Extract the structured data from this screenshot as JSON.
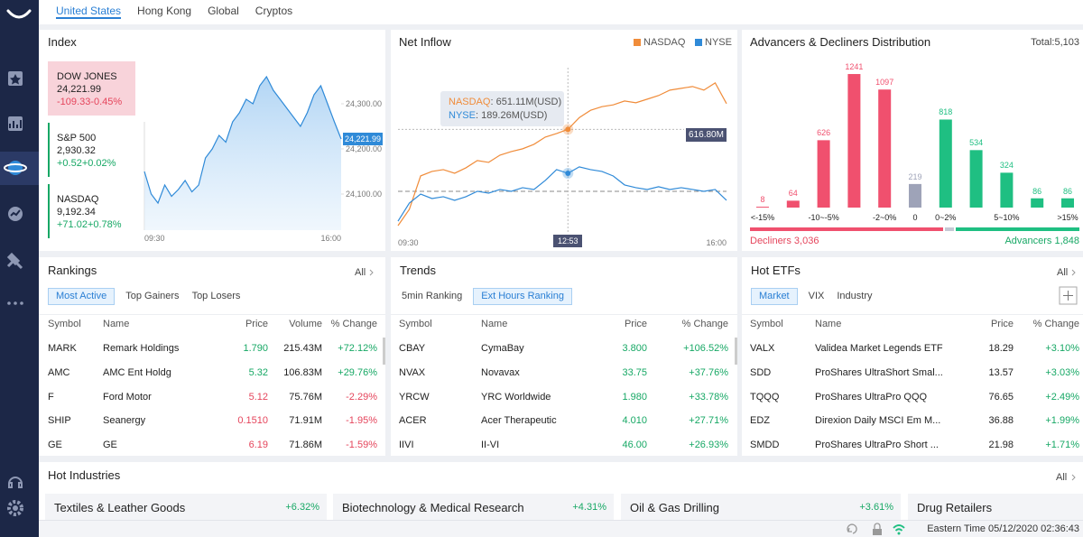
{
  "nav_tabs": {
    "items": [
      "United States",
      "Hong Kong",
      "Global",
      "Cryptos"
    ],
    "active": 0
  },
  "index": {
    "title": "Index",
    "quotes": [
      {
        "name": "DOW JONES",
        "price": "24,221.99",
        "change": "-109.33-0.45%"
      },
      {
        "name": "S&P 500",
        "price": "2,930.32",
        "change": "+0.52+0.02%"
      },
      {
        "name": "NASDAQ",
        "price": "9,192.34",
        "change": "+71.02+0.78%"
      }
    ],
    "chart": {
      "type": "line",
      "x_labels": [
        "09:30",
        "16:00"
      ],
      "ylim": [
        24020,
        24380
      ],
      "yticks": [
        {
          "value": 24300,
          "label": "24,300.00"
        },
        {
          "value": 24200,
          "label": "24,200.00"
        },
        {
          "value": 24100,
          "label": "24,100.00"
        }
      ],
      "values": [
        24150,
        24100,
        24080,
        24120,
        24095,
        24110,
        24130,
        24105,
        24120,
        24180,
        24200,
        24230,
        24215,
        24260,
        24280,
        24310,
        24300,
        24340,
        24360,
        24330,
        24310,
        24290,
        24270,
        24250,
        24280,
        24320,
        24340,
        24300,
        24260,
        24221.99
      ],
      "last_label": "24,221.99",
      "color": "#2f8ad8"
    }
  },
  "net_inflow": {
    "title": "Net Inflow",
    "chart": {
      "type": "line",
      "x_labels": [
        "09:30",
        "12:53",
        "16:00"
      ],
      "ylim": [
        -437,
        1300
      ],
      "series": [
        {
          "name": "NASDAQ",
          "color": "#f08c3a",
          "values": [
            -361,
            -190,
            162,
            209,
            228,
            190,
            247,
            323,
            304,
            380,
            418,
            447,
            494,
            570,
            608,
            651.11,
            775,
            852,
            890,
            909,
            950,
            931,
            969,
            1007,
            1064,
            1083,
            1102,
            1064,
            1140,
            922
          ]
        },
        {
          "name": "NYSE",
          "color": "#2f8ad8",
          "values": [
            -314,
            -124,
            -29,
            -76,
            -57,
            -95,
            -57,
            0,
            -19,
            19,
            0,
            38,
            19,
            114,
            228,
            189.26,
            257,
            228,
            209,
            161,
            67,
            38,
            19,
            48,
            19,
            38,
            19,
            0,
            19,
            -95
          ]
        }
      ],
      "tooltip": [
        ": 651.11M(USD)",
        ": 189.26M(USD)"
      ],
      "level_label": "616.80M"
    }
  },
  "adv_dec": {
    "title": "Advancers & Decliners Distribution",
    "total": "Total:5,103",
    "chart": {
      "type": "bar",
      "categories": [
        "<-15%",
        null,
        "-10~-5%",
        null,
        "-2~0%",
        "0",
        "0~2%",
        null,
        "5~10%",
        null,
        ">15%"
      ],
      "values": [
        8,
        64,
        626,
        1241,
        1097,
        219,
        818,
        534,
        324,
        86,
        86
      ],
      "colors": [
        "#f0506e",
        "#f0506e",
        "#f0506e",
        "#f0506e",
        "#f0506e",
        "#9ea3b8",
        "#1fbf82",
        "#1fbf82",
        "#1fbf82",
        "#1fbf82",
        "#1fbf82"
      ],
      "ylim": [
        0,
        1300
      ]
    },
    "decliners": "Decliners 3,036",
    "advancers": "Advancers 1,848"
  },
  "rankings": {
    "title": "Rankings",
    "all": "All",
    "tabs": [
      "Most Active",
      "Top Gainers",
      "Top Losers"
    ],
    "active_tab": 0,
    "columns": [
      "Symbol",
      "Name",
      "Price",
      "Volume",
      "% Change"
    ],
    "price_colored": true,
    "rows": [
      [
        "MARK",
        "Remark Holdings",
        "1.790",
        "215.43M",
        "+72.12%"
      ],
      [
        "AMC",
        "AMC Ent Holdg",
        "5.32",
        "106.83M",
        "+29.76%"
      ],
      [
        "F",
        "Ford Motor",
        "5.12",
        "75.76M",
        "-2.29%"
      ],
      [
        "SHIP",
        "Seanergy",
        "0.1510",
        "71.91M",
        "-1.95%"
      ],
      [
        "GE",
        "GE",
        "6.19",
        "71.86M",
        "-1.59%"
      ]
    ]
  },
  "trends": {
    "title": "Trends",
    "tabs": [
      "5min Ranking",
      "Ext Hours Ranking"
    ],
    "active_tab": 1,
    "columns": [
      "Symbol",
      "Name",
      "Price",
      "% Change"
    ],
    "price_colored": true,
    "rows": [
      [
        "CBAY",
        "CymaBay",
        "3.800",
        "+106.52%"
      ],
      [
        "NVAX",
        "Novavax",
        "33.75",
        "+37.76%"
      ],
      [
        "YRCW",
        "YRC Worldwide",
        "1.980",
        "+33.78%"
      ],
      [
        "ACER",
        "Acer Therapeutic",
        "4.010",
        "+27.71%"
      ],
      [
        "IIVI",
        "II-VI",
        "46.00",
        "+26.93%"
      ]
    ]
  },
  "hot_etfs": {
    "title": "Hot ETFs",
    "all": "All",
    "tabs": [
      "Market",
      "VIX",
      "Industry"
    ],
    "active_tab": 0,
    "columns": [
      "Symbol",
      "Name",
      "Price",
      "% Change"
    ],
    "price_colored": false,
    "rows": [
      [
        "VALX",
        "Validea Market Legends ETF",
        "18.29",
        "+3.10%"
      ],
      [
        "SDD",
        "ProShares UltraShort Smal...",
        "13.57",
        "+3.03%"
      ],
      [
        "TQQQ",
        "ProShares UltraPro QQQ",
        "76.65",
        "+2.49%"
      ],
      [
        "EDZ",
        "Direxion Daily MSCI Em M...",
        "36.88",
        "+1.99%"
      ],
      [
        "SMDD",
        "ProShares UltraPro Short ...",
        "21.98",
        "+1.71%"
      ]
    ]
  },
  "hot_industries": {
    "title": "Hot Industries",
    "all": "All",
    "items": [
      {
        "name": "Textiles & Leather Goods",
        "change": "+6.32%"
      },
      {
        "name": "Biotechnology & Medical Research",
        "change": "+4.31%"
      },
      {
        "name": "Oil & Gas Drilling",
        "change": "+3.61%"
      },
      {
        "name": "Drug Retailers"
      }
    ]
  },
  "status": "Eastern Time 05/12/2020 02:36:43"
}
